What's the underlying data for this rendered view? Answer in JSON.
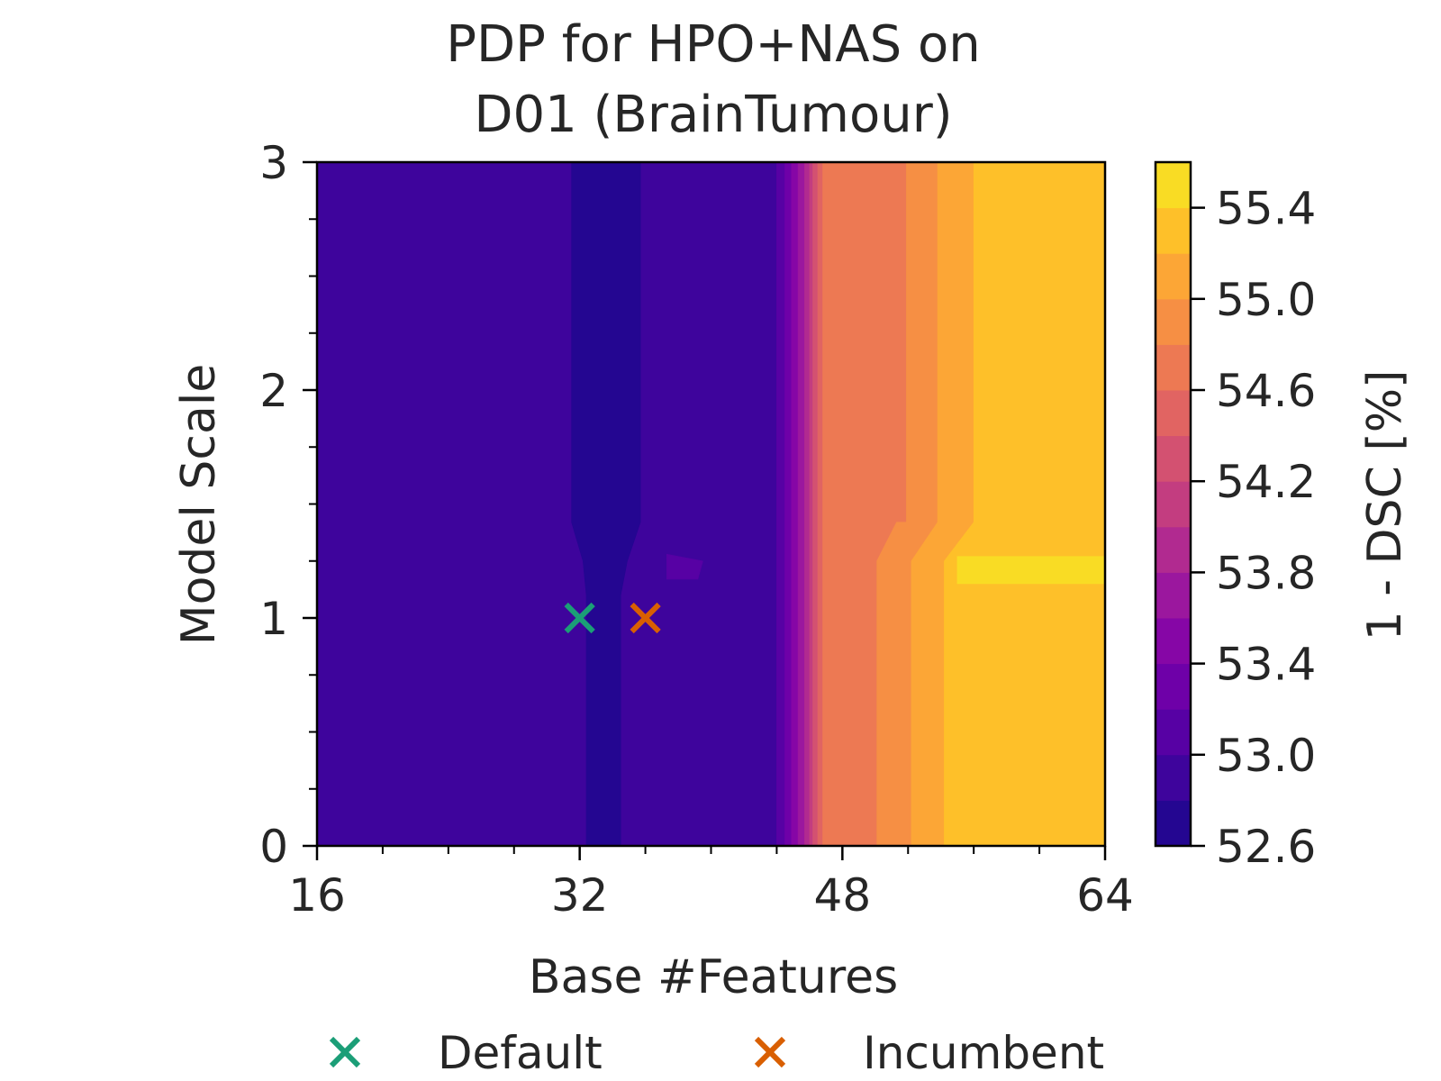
{
  "chart_data": {
    "type": "heatmap",
    "title_lines": [
      "PDP for HPO+NAS on",
      "D01 (BrainTumour)"
    ],
    "xlabel": "Base #Features",
    "ylabel": "Model Scale",
    "xlim": [
      16,
      64
    ],
    "ylim": [
      0,
      3
    ],
    "x_ticks": [
      16,
      32,
      48,
      64
    ],
    "x_tick_labels": [
      "16",
      "32",
      "48",
      "64"
    ],
    "x_minor_ticks": [
      20,
      24,
      28,
      36,
      40,
      44,
      52,
      56,
      60
    ],
    "y_ticks": [
      0,
      1,
      2,
      3
    ],
    "y_tick_labels": [
      "0",
      "1",
      "2",
      "3"
    ],
    "y_minor_ticks": [
      0.25,
      0.5,
      0.75,
      1.25,
      1.5,
      1.75,
      2.25,
      2.5,
      2.75
    ],
    "colormap": "plasma",
    "colorbar": {
      "label": "1 - DSC [%]",
      "range": [
        52.6,
        55.6
      ],
      "levels": [
        52.6,
        52.8,
        53.0,
        53.2,
        53.4,
        53.6,
        53.8,
        54.0,
        54.2,
        54.4,
        54.6,
        54.8,
        55.0,
        55.2,
        55.4,
        55.6
      ],
      "level_colors": [
        "#240691",
        "#3e049c",
        "#5701a4",
        "#6e00a8",
        "#8606a6",
        "#9b179e",
        "#b12a90",
        "#c33d80",
        "#d35171",
        "#e16462",
        "#ed7953",
        "#f68f44",
        "#fca636",
        "#fec029",
        "#f9dc24",
        "#f0f921"
      ],
      "ticks": [
        52.6,
        53.0,
        53.4,
        53.8,
        54.2,
        54.6,
        55.0,
        55.4
      ],
      "tick_labels": [
        "52.6",
        "53.0",
        "53.4",
        "53.8",
        "54.2",
        "54.6",
        "55.0",
        "55.4"
      ]
    },
    "regions": [
      {
        "level": 1,
        "value": 52.9,
        "polygon": [
          [
            16,
            0
          ],
          [
            16,
            3
          ],
          [
            64,
            3
          ],
          [
            64,
            0
          ]
        ]
      },
      {
        "level": 0,
        "value": 52.7,
        "polygon": [
          [
            31.5,
            3
          ],
          [
            35.7,
            3
          ],
          [
            35.7,
            1.42
          ],
          [
            34.9,
            1.25
          ],
          [
            34.5,
            1.1
          ],
          [
            34.5,
            0
          ],
          [
            32.4,
            0
          ],
          [
            32.4,
            1.1
          ],
          [
            32.2,
            1.25
          ],
          [
            31.5,
            1.42
          ]
        ]
      },
      {
        "level": 2,
        "value": 53.1,
        "polygon": [
          [
            37.3,
            1.28
          ],
          [
            39.5,
            1.25
          ],
          [
            39.2,
            1.17
          ],
          [
            37.3,
            1.17
          ]
        ]
      },
      {
        "level": 2,
        "value": 53.1,
        "polygon": [
          [
            44.0,
            3
          ],
          [
            64,
            3
          ],
          [
            64,
            0
          ],
          [
            44.0,
            0
          ]
        ]
      },
      {
        "level": 3,
        "value": 53.3,
        "polygon": [
          [
            44.5,
            3
          ],
          [
            64,
            3
          ],
          [
            64,
            0
          ],
          [
            44.5,
            0
          ]
        ]
      },
      {
        "level": 4,
        "value": 53.5,
        "polygon": [
          [
            44.9,
            3
          ],
          [
            64,
            3
          ],
          [
            64,
            0
          ],
          [
            44.9,
            0
          ]
        ]
      },
      {
        "level": 5,
        "value": 53.7,
        "polygon": [
          [
            45.3,
            3
          ],
          [
            64,
            3
          ],
          [
            64,
            0
          ],
          [
            45.3,
            0
          ]
        ]
      },
      {
        "level": 6,
        "value": 53.9,
        "polygon": [
          [
            45.7,
            3
          ],
          [
            64,
            3
          ],
          [
            64,
            0
          ],
          [
            45.7,
            0
          ]
        ]
      },
      {
        "level": 7,
        "value": 54.1,
        "polygon": [
          [
            46.0,
            3
          ],
          [
            64,
            3
          ],
          [
            64,
            0
          ],
          [
            46.0,
            0
          ]
        ]
      },
      {
        "level": 8,
        "value": 54.3,
        "polygon": [
          [
            46.2,
            3
          ],
          [
            64,
            3
          ],
          [
            64,
            0
          ],
          [
            46.2,
            0
          ]
        ]
      },
      {
        "level": 9,
        "value": 54.5,
        "polygon": [
          [
            46.5,
            3
          ],
          [
            64,
            3
          ],
          [
            64,
            0
          ],
          [
            46.5,
            0
          ]
        ]
      },
      {
        "level": 10,
        "value": 54.7,
        "polygon": [
          [
            46.8,
            3
          ],
          [
            64,
            3
          ],
          [
            64,
            0
          ],
          [
            46.8,
            0
          ]
        ]
      },
      {
        "level": 11,
        "value": 54.9,
        "polygon": [
          [
            51.9,
            3
          ],
          [
            64,
            3
          ],
          [
            64,
            0
          ],
          [
            50.1,
            0
          ],
          [
            50.1,
            1.25
          ],
          [
            51.3,
            1.42
          ],
          [
            51.9,
            1.42
          ]
        ]
      },
      {
        "level": 12,
        "value": 55.1,
        "polygon": [
          [
            53.8,
            3
          ],
          [
            64,
            3
          ],
          [
            64,
            0
          ],
          [
            52.2,
            0
          ],
          [
            52.2,
            1.25
          ],
          [
            53.8,
            1.42
          ]
        ]
      },
      {
        "level": 13,
        "value": 55.3,
        "polygon": [
          [
            56.0,
            3
          ],
          [
            64,
            3
          ],
          [
            64,
            0
          ],
          [
            54.2,
            0
          ],
          [
            54.2,
            1.25
          ],
          [
            56.0,
            1.42
          ]
        ]
      },
      {
        "level": 14,
        "value": 55.5,
        "polygon": [
          [
            55.0,
            1.27
          ],
          [
            64,
            1.27
          ],
          [
            64,
            1.15
          ],
          [
            55.0,
            1.15
          ]
        ]
      }
    ],
    "markers": [
      {
        "name": "Default",
        "x": 32,
        "y": 1,
        "color": "#1b9e77",
        "symbol": "x"
      },
      {
        "name": "Incumbent",
        "x": 36,
        "y": 1,
        "color": "#d95f02",
        "symbol": "x"
      }
    ],
    "legend": {
      "placement": "bottom-center",
      "entries": [
        "Default",
        "Incumbent"
      ]
    }
  }
}
